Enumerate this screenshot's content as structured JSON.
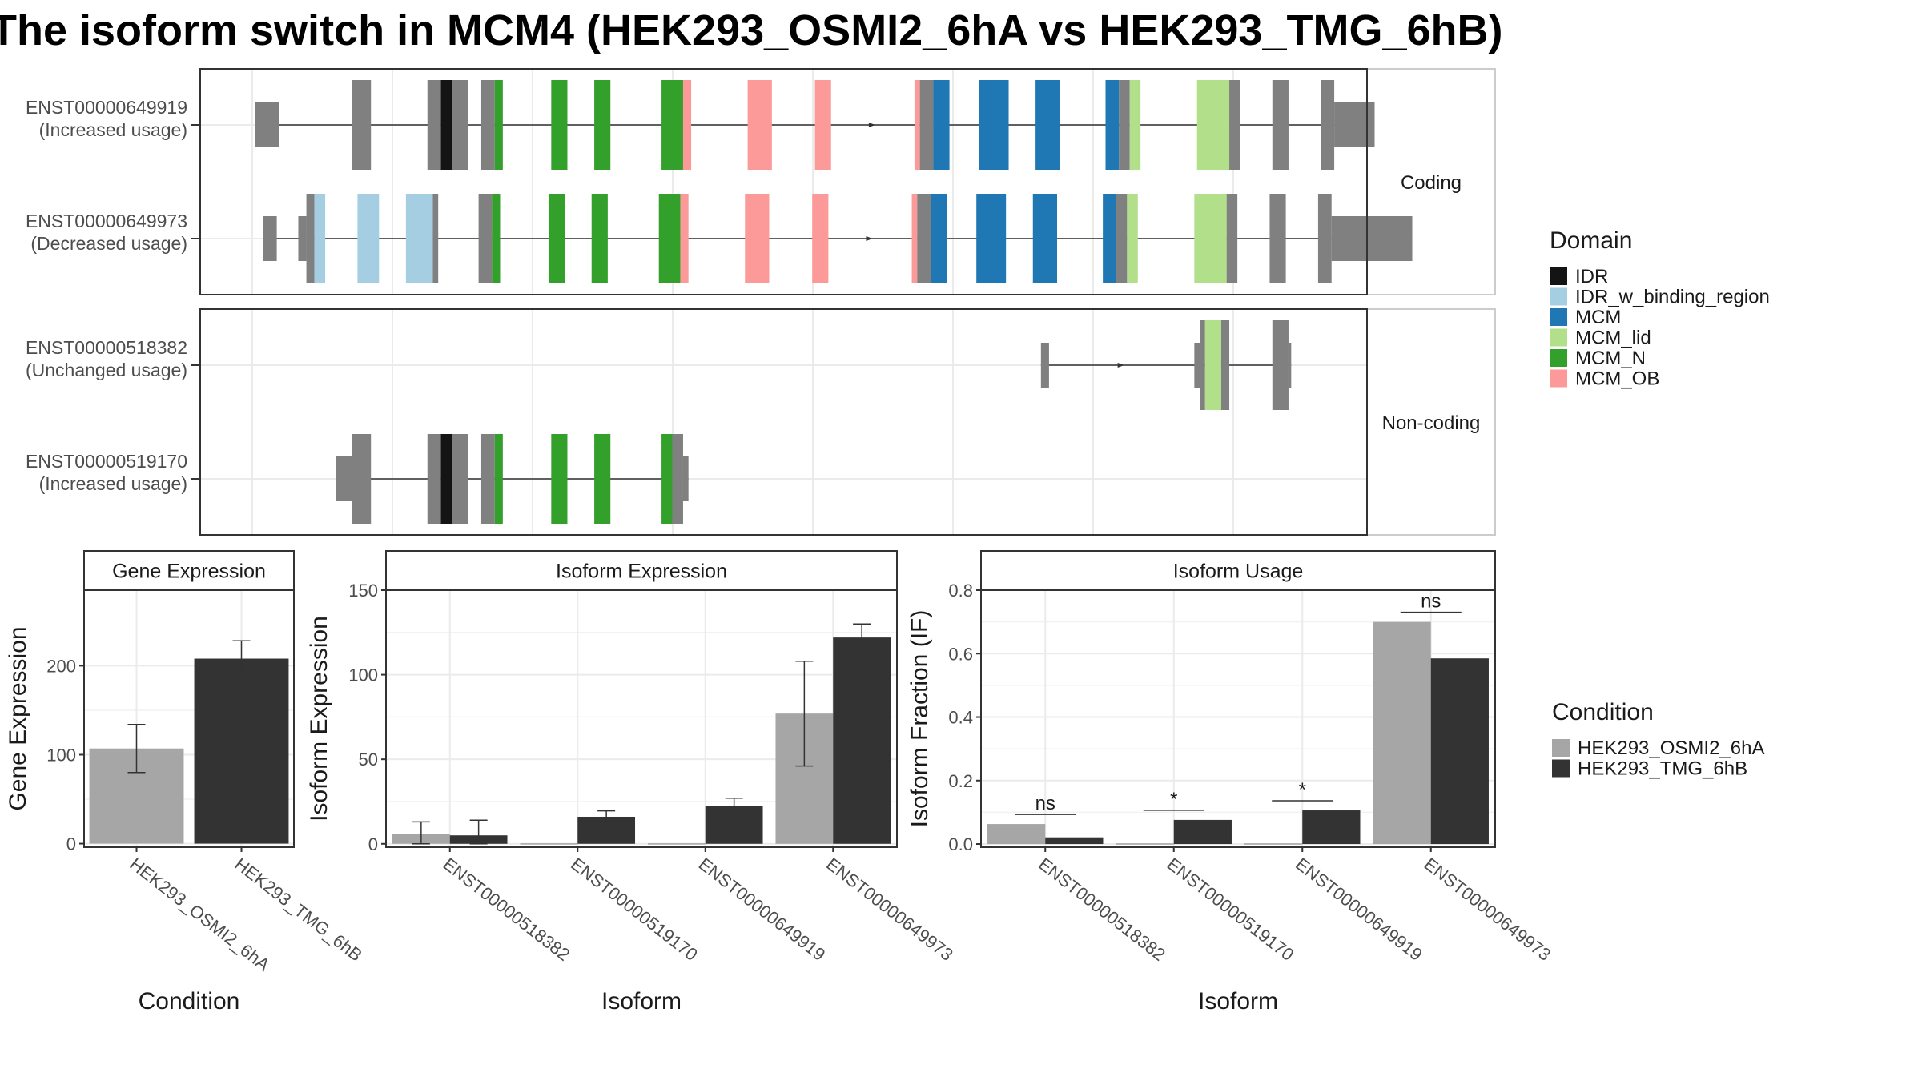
{
  "title": "The isoform switch in MCM4 (HEK293_OSMI2_6hA vs HEK293_TMG_6hB)",
  "legends": {
    "domain": {
      "title": "Domain",
      "items": [
        {
          "label": "IDR",
          "color": "#141414"
        },
        {
          "label": "IDR_w_binding_region",
          "color": "#a6cee3"
        },
        {
          "label": "MCM",
          "color": "#1f78b4"
        },
        {
          "label": "MCM_lid",
          "color": "#b2df8a"
        },
        {
          "label": "MCM_N",
          "color": "#33a02c"
        },
        {
          "label": "MCM_OB",
          "color": "#fb9a99"
        }
      ]
    },
    "condition": {
      "title": "Condition",
      "items": [
        {
          "label": "HEK293_OSMI2_6hA",
          "color": "#a6a6a6"
        },
        {
          "label": "HEK293_TMG_6hB",
          "color": "#333333"
        }
      ]
    }
  },
  "chart_data": [
    {
      "type": "gene-structure",
      "panels": [
        {
          "strip": "Coding",
          "transcripts": [
            {
              "id": "ENST00000649919",
              "usage": "(Increased usage)",
              "exons": [
                {
                  "s": 2,
                  "e": 11,
                  "k": "utr"
                },
                {
                  "s": 38,
                  "e": 45,
                  "k": "cds"
                },
                {
                  "s": 66,
                  "e": 71,
                  "k": "cds"
                },
                {
                  "s": 71,
                  "e": 75,
                  "k": "IDR"
                },
                {
                  "s": 75,
                  "e": 81,
                  "k": "cds"
                },
                {
                  "s": 86,
                  "e": 91,
                  "k": "cds"
                },
                {
                  "s": 91,
                  "e": 94,
                  "k": "MCM_N"
                },
                {
                  "s": 112,
                  "e": 118,
                  "k": "MCM_N"
                },
                {
                  "s": 128,
                  "e": 134,
                  "k": "MCM_N"
                },
                {
                  "s": 153,
                  "e": 161,
                  "k": "MCM_N"
                },
                {
                  "s": 161,
                  "e": 164,
                  "k": "MCM_OB"
                },
                {
                  "s": 185,
                  "e": 194,
                  "k": "MCM_OB"
                },
                {
                  "s": 210,
                  "e": 216,
                  "k": "MCM_OB"
                },
                {
                  "s": 247,
                  "e": 249,
                  "k": "MCM_OB"
                },
                {
                  "s": 249,
                  "e": 254,
                  "k": "cds"
                },
                {
                  "s": 254,
                  "e": 260,
                  "k": "MCM"
                },
                {
                  "s": 271,
                  "e": 282,
                  "k": "MCM"
                },
                {
                  "s": 292,
                  "e": 301,
                  "k": "MCM"
                },
                {
                  "s": 318,
                  "e": 323,
                  "k": "MCM"
                },
                {
                  "s": 323,
                  "e": 327,
                  "k": "cds"
                },
                {
                  "s": 327,
                  "e": 331,
                  "k": "MCM_lid"
                },
                {
                  "s": 352,
                  "e": 364,
                  "k": "MCM_lid"
                },
                {
                  "s": 364,
                  "e": 368,
                  "k": "cds"
                },
                {
                  "s": 380,
                  "e": 386,
                  "k": "cds"
                },
                {
                  "s": 398,
                  "e": 403,
                  "k": "cds"
                },
                {
                  "s": 403,
                  "e": 418,
                  "k": "utr"
                }
              ]
            },
            {
              "id": "ENST00000649973",
              "usage": "(Decreased usage)",
              "exons": [
                {
                  "s": 5,
                  "e": 10,
                  "k": "utr"
                },
                {
                  "s": 18,
                  "e": 21,
                  "k": "utr"
                },
                {
                  "s": 21,
                  "e": 24,
                  "k": "cds"
                },
                {
                  "s": 24,
                  "e": 28,
                  "k": "IDR_w_binding_region"
                },
                {
                  "s": 40,
                  "e": 48,
                  "k": "IDR_w_binding_region"
                },
                {
                  "s": 58,
                  "e": 68,
                  "k": "IDR_w_binding_region"
                },
                {
                  "s": 68,
                  "e": 70,
                  "k": "cds"
                },
                {
                  "s": 85,
                  "e": 90,
                  "k": "cds"
                },
                {
                  "s": 90,
                  "e": 93,
                  "k": "MCM_N"
                },
                {
                  "s": 111,
                  "e": 117,
                  "k": "MCM_N"
                },
                {
                  "s": 127,
                  "e": 133,
                  "k": "MCM_N"
                },
                {
                  "s": 152,
                  "e": 160,
                  "k": "MCM_N"
                },
                {
                  "s": 160,
                  "e": 163,
                  "k": "MCM_OB"
                },
                {
                  "s": 184,
                  "e": 193,
                  "k": "MCM_OB"
                },
                {
                  "s": 209,
                  "e": 215,
                  "k": "MCM_OB"
                },
                {
                  "s": 246,
                  "e": 248,
                  "k": "MCM_OB"
                },
                {
                  "s": 248,
                  "e": 253,
                  "k": "cds"
                },
                {
                  "s": 253,
                  "e": 259,
                  "k": "MCM"
                },
                {
                  "s": 270,
                  "e": 281,
                  "k": "MCM"
                },
                {
                  "s": 291,
                  "e": 300,
                  "k": "MCM"
                },
                {
                  "s": 317,
                  "e": 322,
                  "k": "MCM"
                },
                {
                  "s": 322,
                  "e": 326,
                  "k": "cds"
                },
                {
                  "s": 326,
                  "e": 330,
                  "k": "MCM_lid"
                },
                {
                  "s": 351,
                  "e": 363,
                  "k": "MCM_lid"
                },
                {
                  "s": 363,
                  "e": 367,
                  "k": "cds"
                },
                {
                  "s": 379,
                  "e": 385,
                  "k": "cds"
                },
                {
                  "s": 397,
                  "e": 402,
                  "k": "cds"
                },
                {
                  "s": 402,
                  "e": 432,
                  "k": "utr"
                }
              ]
            }
          ]
        },
        {
          "strip": "Non-coding",
          "transcripts": [
            {
              "id": "ENST00000518382",
              "usage": "(Unchanged usage)",
              "exons": [
                {
                  "s": 294,
                  "e": 297,
                  "k": "utr"
                },
                {
                  "s": 351,
                  "e": 353,
                  "k": "utr"
                },
                {
                  "s": 353,
                  "e": 355,
                  "k": "cds"
                },
                {
                  "s": 355,
                  "e": 361,
                  "k": "MCM_lid"
                },
                {
                  "s": 361,
                  "e": 364,
                  "k": "cds"
                },
                {
                  "s": 380,
                  "e": 386,
                  "k": "cds"
                },
                {
                  "s": 386,
                  "e": 387,
                  "k": "utr"
                }
              ]
            },
            {
              "id": "ENST00000519170",
              "usage": "(Increased usage)",
              "exons": [
                {
                  "s": 32,
                  "e": 38,
                  "k": "utr"
                },
                {
                  "s": 38,
                  "e": 45,
                  "k": "cds"
                },
                {
                  "s": 66,
                  "e": 71,
                  "k": "cds"
                },
                {
                  "s": 71,
                  "e": 75,
                  "k": "IDR"
                },
                {
                  "s": 75,
                  "e": 81,
                  "k": "cds"
                },
                {
                  "s": 86,
                  "e": 91,
                  "k": "cds"
                },
                {
                  "s": 91,
                  "e": 94,
                  "k": "MCM_N"
                },
                {
                  "s": 112,
                  "e": 118,
                  "k": "MCM_N"
                },
                {
                  "s": 128,
                  "e": 134,
                  "k": "MCM_N"
                },
                {
                  "s": 153,
                  "e": 157,
                  "k": "MCM_N"
                },
                {
                  "s": 157,
                  "e": 161,
                  "k": "cds"
                },
                {
                  "s": 161,
                  "e": 163,
                  "k": "utr"
                }
              ]
            }
          ]
        }
      ]
    },
    {
      "type": "bar",
      "title": "Gene Expression",
      "xlabel": "Condition",
      "ylabel": "Gene Expression",
      "ylim": [
        -4,
        285
      ],
      "yticks": [
        0,
        100,
        200
      ],
      "categories": [
        "HEK293_OSMI2_6hA",
        "HEK293_TMG_6hB"
      ],
      "values": [
        107,
        208
      ],
      "errors": [
        [
          80,
          134
        ],
        [
          190,
          228
        ]
      ]
    },
    {
      "type": "bar",
      "title": "Isoform Expression",
      "xlabel": "Isoform",
      "ylabel": "Isoform Expression",
      "ylim": [
        -2,
        150
      ],
      "yticks": [
        0,
        50,
        100,
        150
      ],
      "categories": [
        "ENST00000518382",
        "ENST00000519170",
        "ENST00000649919",
        "ENST00000649973"
      ],
      "series": [
        {
          "name": "HEK293_OSMI2_6hA",
          "values": [
            6,
            0.3,
            0.3,
            77
          ],
          "errors": [
            [
              0,
              13
            ],
            null,
            null,
            [
              46,
              108
            ]
          ]
        },
        {
          "name": "HEK293_TMG_6hB",
          "values": [
            5,
            16,
            22.5,
            122
          ],
          "errors": [
            [
              0,
              14
            ],
            [
              13,
              19.5
            ],
            [
              18,
              27
            ],
            [
              114,
              130
            ]
          ]
        }
      ]
    },
    {
      "type": "bar",
      "title": "Isoform Usage",
      "xlabel": "Isoform",
      "ylabel": "Isoform Fraction (IF)",
      "ylim": [
        -0.01,
        0.8
      ],
      "yticks": [
        0.0,
        0.2,
        0.4,
        0.6,
        0.8
      ],
      "yticklabels": [
        "0.0",
        "0.2",
        "0.4",
        "0.6",
        "0.8"
      ],
      "categories": [
        "ENST00000518382",
        "ENST00000519170",
        "ENST00000649919",
        "ENST00000649973"
      ],
      "series": [
        {
          "name": "HEK293_OSMI2_6hA",
          "values": [
            0.063,
            0.002,
            0.002,
            0.7
          ]
        },
        {
          "name": "HEK293_TMG_6hB",
          "values": [
            0.021,
            0.076,
            0.106,
            0.585
          ]
        }
      ],
      "significance": [
        "ns",
        "*",
        "*",
        "ns"
      ]
    }
  ]
}
